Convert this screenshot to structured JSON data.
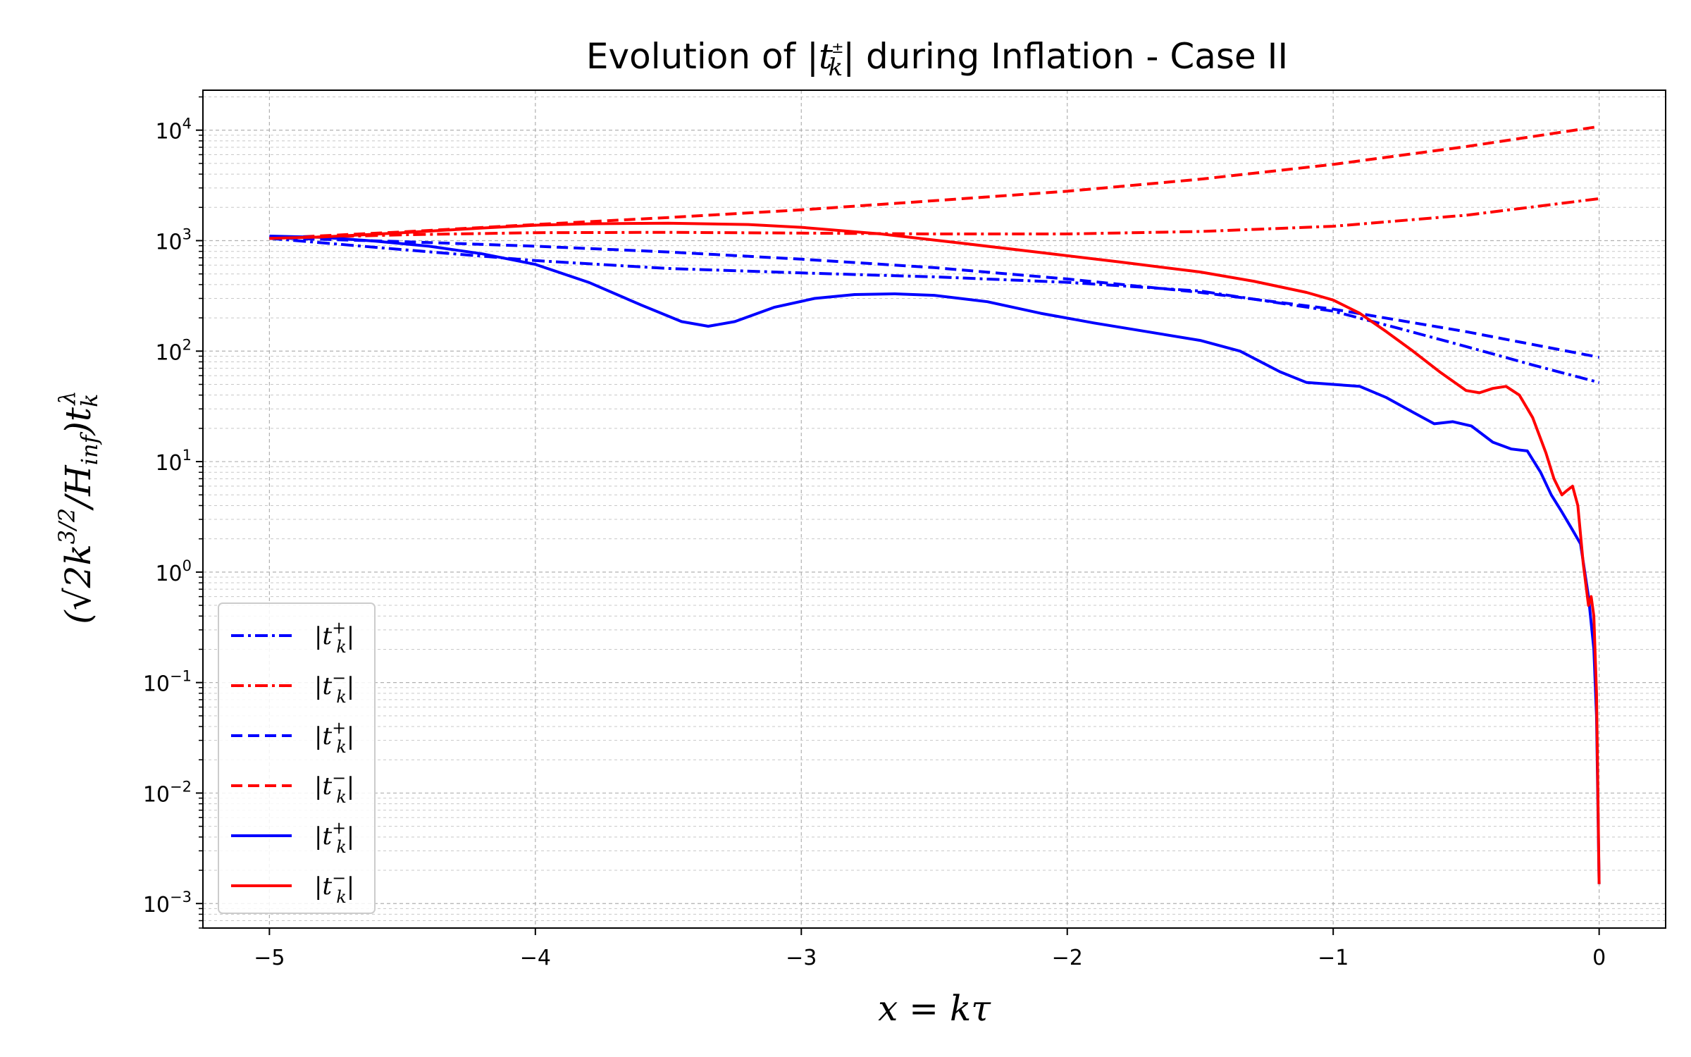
{
  "chart_data": {
    "type": "line",
    "title": "Evolution of |t_k^±| during Inflation - Case II",
    "title_display": {
      "pre": "Evolution of |",
      "t": "t",
      "sup": "±",
      "sub": "k",
      "post": "| during Inflation - Case II"
    },
    "xlabel": "x = kτ",
    "ylabel": "(√2 k^{3/2}/H_inf) t_k^λ",
    "ylabel_display": {
      "open": "(√2",
      "k": "k",
      "ksup": "3/2",
      "slash": "/H",
      "hsub": "inf",
      "close": ")t",
      "tsub": "k",
      "tsup": "λ"
    },
    "xlim": [
      -5.25,
      0.25
    ],
    "ylim": [
      0.0006,
      23000
    ],
    "yscale": "log",
    "grid": true,
    "legend_location": "lower-left",
    "x_ticks": [
      -5,
      -4,
      -3,
      -2,
      -1,
      0
    ],
    "x_tick_labels": [
      "−5",
      "−4",
      "−3",
      "−2",
      "−1",
      "0"
    ],
    "y_ticks": [
      {
        "value": 10000,
        "base": "10",
        "exp": "4"
      },
      {
        "value": 1000,
        "base": "10",
        "exp": "3"
      },
      {
        "value": 100,
        "base": "10",
        "exp": "2"
      },
      {
        "value": 10,
        "base": "10",
        "exp": "1"
      },
      {
        "value": 1,
        "base": "10",
        "exp": "0"
      },
      {
        "value": 0.1,
        "base": "10",
        "exp": "−1"
      },
      {
        "value": 0.01,
        "base": "10",
        "exp": "−2"
      },
      {
        "value": 0.001,
        "base": "10",
        "exp": "−3"
      }
    ],
    "series": [
      {
        "name": "|t_k^+|",
        "label_t": "t",
        "label_sup": "+",
        "label_sub": "k",
        "color": "#0000ff",
        "style": "dashdot",
        "x": [
          -5,
          -4.5,
          -4,
          -3.5,
          -3,
          -2.5,
          -2,
          -1.5,
          -1,
          -0.75,
          -0.5,
          -0.25,
          0
        ],
        "y": [
          1050,
          830,
          660,
          560,
          510,
          470,
          420,
          350,
          230,
          160,
          110,
          75,
          52
        ]
      },
      {
        "name": "|t_k^-|",
        "label_t": "t",
        "label_sup": "−",
        "label_sub": "k",
        "color": "#ff0000",
        "style": "dashdot",
        "x": [
          -5,
          -4.5,
          -4,
          -3.5,
          -3,
          -2.5,
          -2,
          -1.5,
          -1,
          -0.5,
          0
        ],
        "y": [
          1050,
          1130,
          1180,
          1190,
          1170,
          1150,
          1150,
          1210,
          1350,
          1700,
          2400
        ]
      },
      {
        "name": "|t_k^+|",
        "label_t": "t",
        "label_sup": "+",
        "label_sub": "k",
        "color": "#0000ff",
        "style": "dashed",
        "x": [
          -5,
          -4.5,
          -4,
          -3.5,
          -3,
          -2.5,
          -2,
          -1.5,
          -1,
          -0.5,
          0
        ],
        "y": [
          1060,
          980,
          890,
          790,
          680,
          570,
          450,
          340,
          240,
          150,
          88
        ]
      },
      {
        "name": "|t_k^-|",
        "label_t": "t",
        "label_sup": "−",
        "label_sub": "k",
        "color": "#ff0000",
        "style": "dashed",
        "x": [
          -5,
          -4.5,
          -4,
          -3.5,
          -3,
          -2.5,
          -2,
          -1.5,
          -1,
          -0.5,
          0
        ],
        "y": [
          1050,
          1200,
          1400,
          1620,
          1900,
          2300,
          2800,
          3600,
          4900,
          7100,
          10800
        ]
      },
      {
        "name": "|t_k^+|",
        "label_t": "t",
        "label_sup": "+",
        "label_sub": "k",
        "color": "#0000ff",
        "style": "solid",
        "x": [
          -5,
          -4.8,
          -4.6,
          -4.4,
          -4.2,
          -4,
          -3.8,
          -3.6,
          -3.45,
          -3.35,
          -3.25,
          -3.1,
          -2.95,
          -2.8,
          -2.65,
          -2.5,
          -2.3,
          -2.1,
          -1.9,
          -1.7,
          -1.5,
          -1.35,
          -1.2,
          -1.1,
          -1,
          -0.9,
          -0.8,
          -0.7,
          -0.62,
          -0.55,
          -0.48,
          -0.4,
          -0.33,
          -0.27,
          -0.22,
          -0.18,
          -0.14,
          -0.1,
          -0.07,
          -0.04,
          -0.02,
          -0.01,
          0
        ],
        "y": [
          1100,
          1070,
          990,
          890,
          760,
          610,
          420,
          260,
          185,
          168,
          185,
          250,
          300,
          325,
          330,
          320,
          280,
          220,
          180,
          150,
          125,
          100,
          65,
          52,
          50,
          48,
          38,
          28,
          22,
          23,
          21,
          15,
          13,
          12.5,
          8,
          5,
          3.5,
          2.4,
          1.8,
          0.6,
          0.2,
          0.05,
          0.0015
        ]
      },
      {
        "name": "|t_k^-|",
        "label_t": "t",
        "label_sup": "−",
        "label_sub": "k",
        "color": "#ff0000",
        "style": "solid",
        "x": [
          -5,
          -4.8,
          -4.5,
          -4.2,
          -4,
          -3.8,
          -3.5,
          -3.2,
          -3,
          -2.7,
          -2.4,
          -2.1,
          -1.8,
          -1.5,
          -1.3,
          -1.1,
          -1,
          -0.9,
          -0.8,
          -0.7,
          -0.6,
          -0.5,
          -0.45,
          -0.4,
          -0.35,
          -0.3,
          -0.25,
          -0.2,
          -0.17,
          -0.14,
          -0.12,
          -0.1,
          -0.08,
          -0.06,
          -0.04,
          -0.03,
          -0.02,
          -0.01,
          0
        ],
        "y": [
          1050,
          1080,
          1180,
          1300,
          1380,
          1420,
          1440,
          1400,
          1320,
          1150,
          950,
          780,
          640,
          520,
          430,
          340,
          290,
          220,
          150,
          100,
          65,
          44,
          42,
          46,
          48,
          40,
          25,
          12,
          7,
          5,
          5.5,
          6,
          4,
          1.2,
          0.5,
          0.6,
          0.4,
          0.08,
          0.0015
        ]
      }
    ]
  }
}
